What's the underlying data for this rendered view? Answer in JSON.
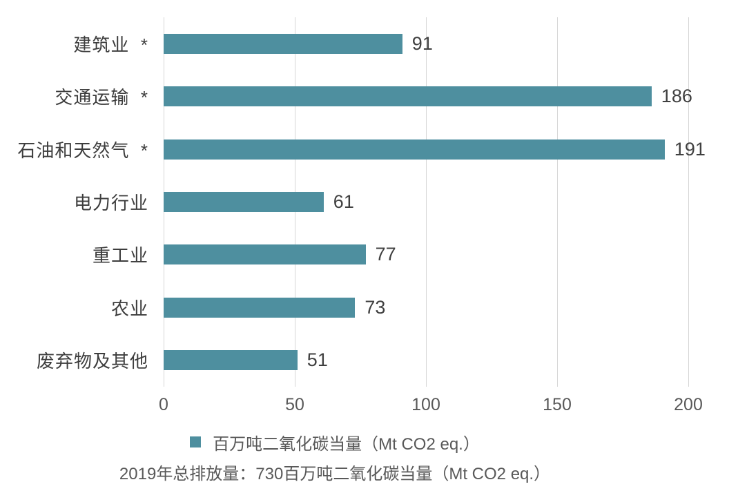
{
  "colors": {
    "bar": "#4e8f9f",
    "grid": "#d6d6d6",
    "category_text": "#3d3d3d",
    "value_text": "#404040",
    "axis_text": "#595959"
  },
  "chart_data": {
    "type": "bar",
    "orientation": "horizontal",
    "title": "",
    "categories": [
      "建筑业  *",
      "交通运输  *",
      "石油和天然气  *",
      "电力行业",
      "重工业",
      "农业",
      "废弃物及其他"
    ],
    "values": [
      91,
      186,
      191,
      61,
      77,
      73,
      51
    ],
    "series_name": "百万吨二氧化碳当量（Mt CO2 eq.）",
    "xlabel": "",
    "ylabel": "",
    "xlim": [
      0,
      200
    ],
    "x_ticks": [
      0,
      50,
      100,
      150,
      200
    ],
    "grid": true,
    "data_labels": true,
    "legend_position": "bottom",
    "caption": "2019年总排放量：730百万吨二氧化碳当量（Mt CO2 eq.）"
  }
}
